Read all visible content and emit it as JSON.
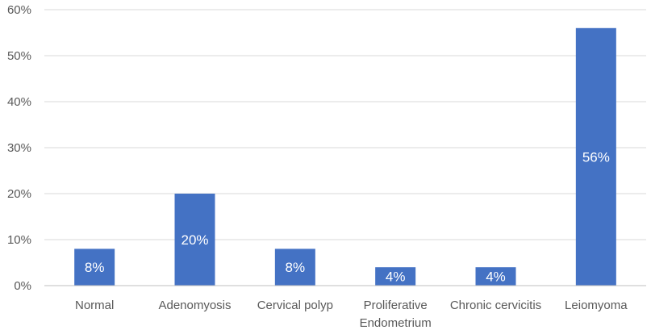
{
  "chart_data": {
    "type": "bar",
    "title": "",
    "xlabel": "",
    "ylabel": "",
    "categories": [
      [
        "Normal"
      ],
      [
        "Adenomyosis"
      ],
      [
        "Cervical polyp"
      ],
      [
        "Proliferative",
        "Endometrium"
      ],
      [
        "Chronic cervicitis"
      ],
      [
        "Leiomyoma"
      ]
    ],
    "values": [
      8,
      20,
      8,
      4,
      4,
      56
    ],
    "value_labels": [
      "8%",
      "20%",
      "8%",
      "4%",
      "4%",
      "56%"
    ],
    "ylim": [
      0,
      60
    ],
    "yticks": [
      0,
      10,
      20,
      30,
      40,
      50,
      60
    ],
    "ytick_labels": [
      "0%",
      "10%",
      "20%",
      "30%",
      "40%",
      "50%",
      "60%"
    ],
    "grid": true,
    "legend": "none",
    "colors": {
      "bar": "#4472C4",
      "grid": "#D9D9D9",
      "axis": "#BFBFBF",
      "tick_text": "#595959",
      "data_label_text": "#FFFFFF"
    }
  }
}
